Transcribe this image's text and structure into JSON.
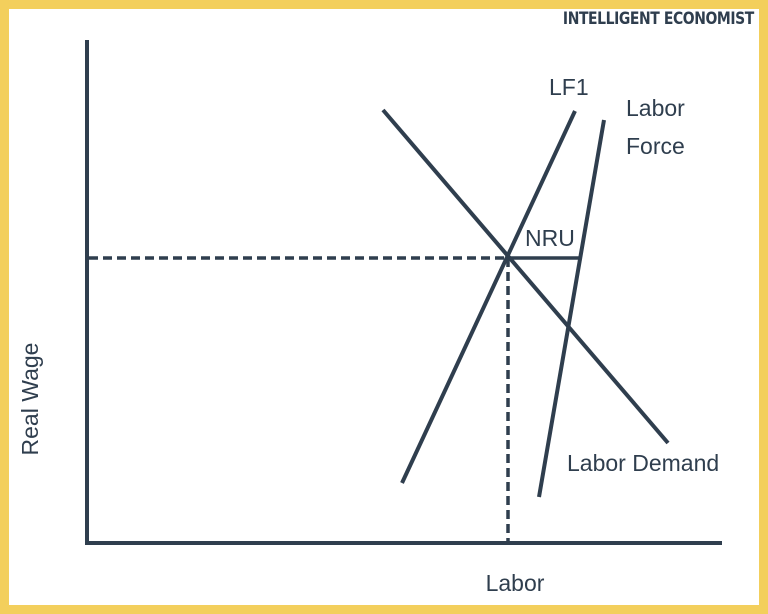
{
  "brand": {
    "name": "INTELLIGENT ECONOMIST"
  },
  "colors": {
    "frame": "#f3cf5c",
    "ink": "#2f3e4e",
    "background": "#ffffff"
  },
  "axes": {
    "ylabel": "Real Wage",
    "xlabel": "Labor"
  },
  "curves": {
    "lf1": "LF1",
    "labor_force_line1": "Labor",
    "labor_force_line2": "Force",
    "labor_demand": "Labor Demand"
  },
  "annotations": {
    "nru": "NRU"
  }
}
